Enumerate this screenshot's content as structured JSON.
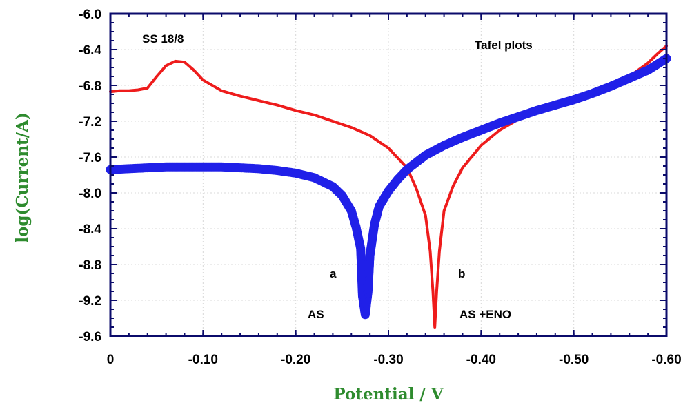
{
  "chart_data": {
    "type": "line",
    "title": "",
    "xlabel": "Potential / V",
    "ylabel": "log(Current/A)",
    "xlim": [
      0,
      -0.6
    ],
    "ylim": [
      -9.6,
      -6.0
    ],
    "x_ticks": [
      0,
      -0.1,
      -0.2,
      -0.3,
      -0.4,
      -0.5,
      -0.6
    ],
    "x_tick_labels": [
      "0",
      "-0.10",
      "-0.20",
      "-0.30",
      "-0.40",
      "-0.50",
      "-0.60"
    ],
    "y_ticks": [
      -6.0,
      -6.4,
      -6.8,
      -7.2,
      -7.6,
      -8.0,
      -8.4,
      -8.8,
      -9.2,
      -9.6
    ],
    "y_tick_labels": [
      "-6.0",
      "-6.4",
      "-6.8",
      "-7.2",
      "-7.6",
      "-8.0",
      "-8.4",
      "-8.8",
      "-9.2",
      "-9.6"
    ],
    "grid": true,
    "series": [
      {
        "color": "#ee1c1c",
        "style": "line",
        "x": [
          0,
          -0.01,
          -0.02,
          -0.03,
          -0.04,
          -0.05,
          -0.06,
          -0.07,
          -0.08,
          -0.09,
          -0.1,
          -0.12,
          -0.14,
          -0.16,
          -0.18,
          -0.2,
          -0.22,
          -0.24,
          -0.26,
          -0.28,
          -0.3,
          -0.32,
          -0.33,
          -0.34,
          -0.345,
          -0.348,
          -0.35,
          -0.352,
          -0.355,
          -0.36,
          -0.37,
          -0.38,
          -0.4,
          -0.42,
          -0.44,
          -0.46,
          -0.48,
          -0.5,
          -0.52,
          -0.54,
          -0.56,
          -0.58,
          -0.59,
          -0.6
        ],
        "y": [
          -6.87,
          -6.86,
          -6.86,
          -6.85,
          -6.83,
          -6.7,
          -6.58,
          -6.53,
          -6.54,
          -6.63,
          -6.74,
          -6.86,
          -6.92,
          -6.97,
          -7.02,
          -7.08,
          -7.13,
          -7.2,
          -7.27,
          -7.36,
          -7.5,
          -7.72,
          -7.95,
          -8.25,
          -8.65,
          -9.1,
          -9.5,
          -9.1,
          -8.65,
          -8.2,
          -7.92,
          -7.72,
          -7.47,
          -7.3,
          -7.18,
          -7.09,
          -7.02,
          -6.95,
          -6.88,
          -6.79,
          -6.7,
          -6.55,
          -6.45,
          -6.36
        ]
      },
      {
        "color": "#2020e8",
        "style": "markers",
        "x": [
          0,
          -0.02,
          -0.04,
          -0.06,
          -0.08,
          -0.1,
          -0.12,
          -0.14,
          -0.16,
          -0.18,
          -0.2,
          -0.22,
          -0.24,
          -0.25,
          -0.26,
          -0.265,
          -0.27,
          -0.272,
          -0.275,
          -0.278,
          -0.28,
          -0.285,
          -0.29,
          -0.3,
          -0.31,
          -0.32,
          -0.34,
          -0.36,
          -0.38,
          -0.4,
          -0.42,
          -0.44,
          -0.46,
          -0.48,
          -0.5,
          -0.52,
          -0.54,
          -0.56,
          -0.58,
          -0.6
        ],
        "y": [
          -7.74,
          -7.73,
          -7.72,
          -7.71,
          -7.71,
          -7.71,
          -7.71,
          -7.72,
          -7.73,
          -7.75,
          -7.78,
          -7.83,
          -7.93,
          -8.03,
          -8.2,
          -8.38,
          -8.62,
          -9.15,
          -9.36,
          -9.1,
          -8.7,
          -8.35,
          -8.15,
          -7.98,
          -7.85,
          -7.74,
          -7.58,
          -7.47,
          -7.38,
          -7.3,
          -7.22,
          -7.15,
          -7.08,
          -7.02,
          -6.96,
          -6.89,
          -6.81,
          -6.72,
          -6.63,
          -6.5
        ]
      }
    ],
    "annotations": [
      "SS 18/8",
      "Tafel plots",
      "a",
      "b",
      "AS",
      "AS +ENO"
    ]
  },
  "colors": {
    "axis": "#0b0b6b",
    "grid": "#d8d8d8",
    "axis_title": "#2e8b2e"
  }
}
